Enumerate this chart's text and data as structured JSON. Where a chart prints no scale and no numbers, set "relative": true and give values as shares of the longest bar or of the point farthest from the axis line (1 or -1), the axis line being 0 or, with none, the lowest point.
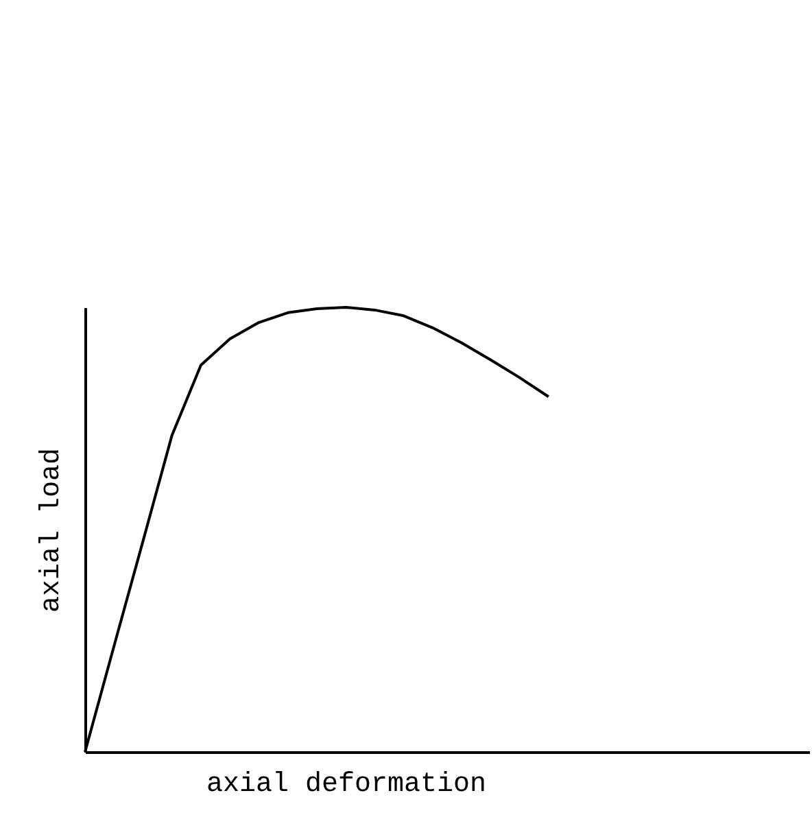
{
  "chart_data": {
    "type": "line",
    "xlabel": "axial deformation",
    "ylabel": "axial load",
    "relative": true,
    "categories": [
      null,
      null,
      null,
      null,
      null,
      null,
      null,
      null,
      null,
      null,
      null,
      null,
      null,
      null,
      null,
      null,
      null,
      null,
      null,
      null,
      null,
      null,
      null,
      null,
      null,
      null
    ],
    "series": [
      {
        "color": "#000000",
        "values": [
          0,
          0.238,
          0.474,
          0.712,
          0.87,
          0.929,
          0.966,
          0.988,
          0.997,
          1,
          0.994,
          0.981,
          0.954,
          0.92,
          0.882,
          0.842,
          0.799,
          null,
          null,
          null,
          null,
          null,
          null,
          null,
          null,
          null
        ]
      }
    ]
  }
}
